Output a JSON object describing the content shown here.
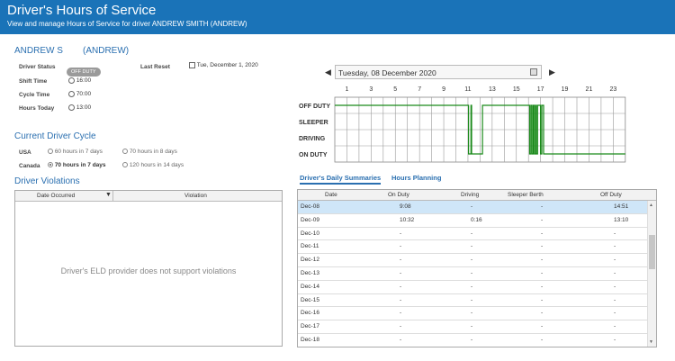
{
  "header": {
    "title": "Driver's Hours of Service",
    "subtitle": "View and manage Hours of Service for driver ANDREW SMITH (ANDREW)"
  },
  "driver": {
    "name": "ANDREW S",
    "username": "(ANDREW)",
    "status_label": "Driver Status",
    "status_badge": "OFF DUTY",
    "shift_label": "Shift Time",
    "shift_value": "16:00",
    "cycle_label": "Cycle Time",
    "cycle_value": "70:00",
    "hours_label": "Hours Today",
    "hours_value": "13:00",
    "last_reset_label": "Last Reset",
    "last_reset_value": "Tue, December 1, 2020"
  },
  "cycle": {
    "title": "Current Driver Cycle",
    "usa_label": "USA",
    "usa_opt1": "60 hours in 7 days",
    "usa_opt2": "70 hours in 8 days",
    "canada_label": "Canada",
    "canada_opt1": "70 hours in 7 days",
    "canada_opt2": "120 hours in 14 days"
  },
  "violations": {
    "title": "Driver Violations",
    "col_date": "Date Occurred",
    "col_violation": "Violation",
    "empty": "Driver's ELD provider does not support violations"
  },
  "log": {
    "date": "Tuesday, 08 December 2020",
    "hours": [
      "1",
      "3",
      "5",
      "7",
      "9",
      "11",
      "13",
      "15",
      "17",
      "19",
      "21",
      "23"
    ],
    "rows": [
      "OFF DUTY",
      "SLEEPER",
      "DRIVING",
      "ON DUTY"
    ]
  },
  "tabs": {
    "daily": "Driver's Daily Summaries",
    "planning": "Hours Planning"
  },
  "summary": {
    "columns": [
      "Date",
      "On Duty",
      "Driving",
      "Sleeper Berth",
      "Off Duty"
    ],
    "rows": [
      [
        "Dec-08",
        "9:08",
        "-",
        "-",
        "14:51"
      ],
      [
        "Dec-09",
        "10:32",
        "0:16",
        "-",
        "13:10"
      ],
      [
        "Dec-10",
        "-",
        "-",
        "-",
        "-"
      ],
      [
        "Dec-11",
        "-",
        "-",
        "-",
        "-"
      ],
      [
        "Dec-12",
        "-",
        "-",
        "-",
        "-"
      ],
      [
        "Dec-13",
        "-",
        "-",
        "-",
        "-"
      ],
      [
        "Dec-14",
        "-",
        "-",
        "-",
        "-"
      ],
      [
        "Dec-15",
        "-",
        "-",
        "-",
        "-"
      ],
      [
        "Dec-16",
        "-",
        "-",
        "-",
        "-"
      ],
      [
        "Dec-17",
        "-",
        "-",
        "-",
        "-"
      ],
      [
        "Dec-18",
        "-",
        "-",
        "-",
        "-"
      ]
    ]
  },
  "colors": {
    "header": "#1a73b8",
    "accent": "#2a6fb0",
    "log_line": "#1a8a1a",
    "selected_row": "#cfe6f8"
  }
}
